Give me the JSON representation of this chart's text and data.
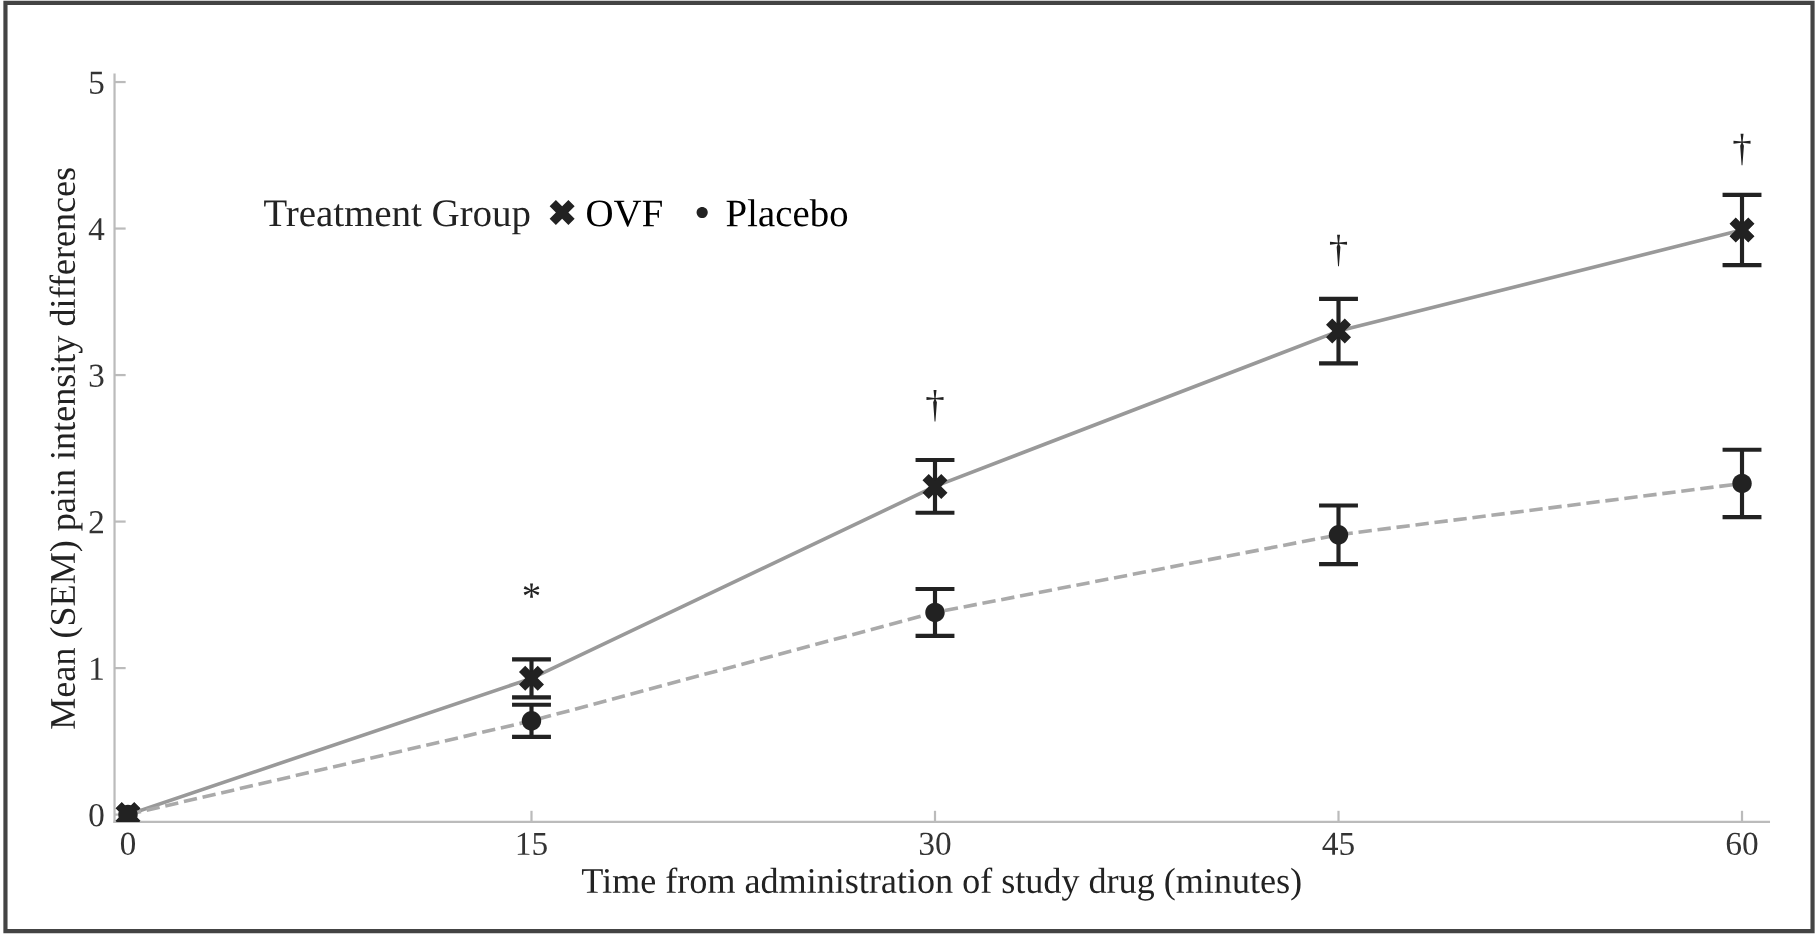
{
  "chart_data": {
    "type": "line",
    "xlabel": "Time from administration of study drug (minutes)",
    "ylabel": "Mean (SEM) pain intensity differences",
    "legend_title": "Treatment Group",
    "legend": "top left",
    "x": [
      0,
      15,
      30,
      45,
      60
    ],
    "series": [
      {
        "name": "OVF",
        "color": "#999999",
        "marker": "cross",
        "line_style": "solid",
        "values": [
          0,
          0.93,
          2.24,
          3.3,
          3.99
        ],
        "errors": [
          null,
          0.13,
          0.18,
          0.22,
          0.24
        ]
      },
      {
        "name": "Placebo",
        "color": "#aaaaaa",
        "marker": "circle",
        "line_style": "dashed",
        "values": [
          0,
          0.64,
          1.38,
          1.91,
          2.26
        ],
        "errors": [
          null,
          0.11,
          0.16,
          0.2,
          0.23
        ]
      }
    ],
    "annotations": [
      {
        "text": "*",
        "x": 15,
        "y": 0.93
      },
      {
        "text": "†",
        "x": 30,
        "y": 2.24
      },
      {
        "text": "†",
        "x": 45,
        "y": 3.3
      },
      {
        "text": "†",
        "x": 60,
        "y": 3.99
      }
    ],
    "xlim": [
      -0.5,
      61
    ],
    "ylim": [
      -0.05,
      5.05
    ],
    "xticks": [
      0,
      15,
      30,
      45,
      60
    ],
    "yticks": [
      0,
      1,
      2,
      3,
      4,
      5
    ],
    "grid": false
  }
}
